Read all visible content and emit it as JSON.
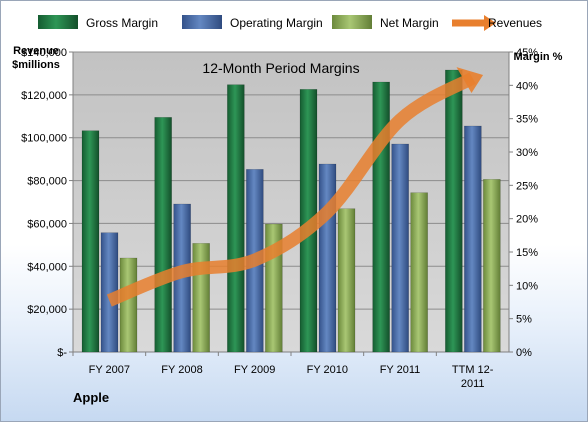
{
  "chart_data": {
    "type": "bar",
    "title": "12-Month Period Margins",
    "footer_label": "Apple",
    "categories": [
      [
        "FY 2007"
      ],
      [
        "FY 2008"
      ],
      [
        "FY 2009"
      ],
      [
        "FY 2010"
      ],
      [
        "FY 2011"
      ],
      [
        "TTM 12-",
        "2011"
      ]
    ],
    "left_axis": {
      "title_lines": [
        "Revenue",
        "$millions"
      ],
      "range": [
        0,
        140000
      ],
      "ticks": [
        {
          "value": 0,
          "label": "$-"
        },
        {
          "value": 20000,
          "label": "$20,000"
        },
        {
          "value": 40000,
          "label": "$40,000"
        },
        {
          "value": 60000,
          "label": "$60,000"
        },
        {
          "value": 80000,
          "label": "$80,000"
        },
        {
          "value": 100000,
          "label": "$100,000"
        },
        {
          "value": 120000,
          "label": "$120,000"
        },
        {
          "value": 140000,
          "label": "$140,000"
        }
      ]
    },
    "right_axis": {
      "title": "Margin %",
      "range": [
        0,
        45
      ],
      "ticks": [
        {
          "value": 0,
          "label": "0%"
        },
        {
          "value": 5,
          "label": "5%"
        },
        {
          "value": 10,
          "label": "10%"
        },
        {
          "value": 15,
          "label": "15%"
        },
        {
          "value": 20,
          "label": "20%"
        },
        {
          "value": 25,
          "label": "25%"
        },
        {
          "value": 30,
          "label": "30%"
        },
        {
          "value": 35,
          "label": "35%"
        },
        {
          "value": 40,
          "label": "40%"
        },
        {
          "value": 45,
          "label": "45%"
        }
      ]
    },
    "series": [
      {
        "name": "Gross Margin",
        "axis": "right",
        "color": "#1e7a43",
        "values": [
          33.2,
          35.2,
          40.1,
          39.4,
          40.5,
          42.3
        ]
      },
      {
        "name": "Operating Margin",
        "axis": "right",
        "color": "#4a6ea9",
        "values": [
          17.9,
          22.2,
          27.4,
          28.2,
          31.2,
          33.9
        ]
      },
      {
        "name": "Net Margin",
        "axis": "right",
        "color": "#8fae57",
        "values": [
          14.1,
          16.3,
          19.2,
          21.5,
          23.9,
          25.9
        ]
      },
      {
        "name": "Revenues",
        "axis": "left",
        "color": "#e87f2e",
        "type": "line",
        "values": [
          24006,
          37491,
          42905,
          65225,
          108249,
          127841
        ]
      }
    ],
    "legend_position": "top",
    "grid": true,
    "plot_background": "#bfbfbf"
  }
}
